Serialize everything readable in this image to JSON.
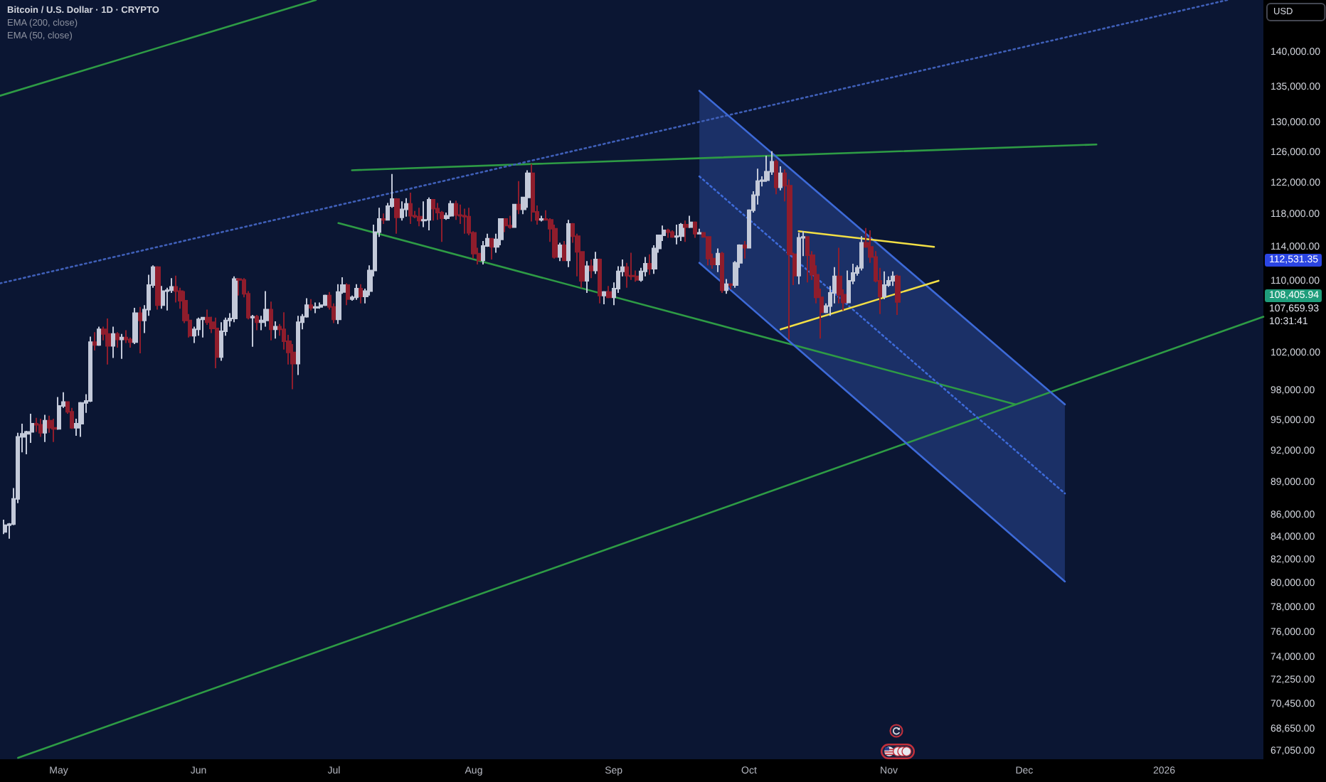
{
  "chart_data": {
    "type": "candlestick",
    "title": "Bitcoin / U.S. Dollar · 1D · CRYPTO",
    "ylabel": "USD",
    "log": true,
    "xlim": [
      "2025-04-18",
      "2026-01-23"
    ],
    "xticks": [
      {
        "value": "2025-05-01",
        "label": "May"
      },
      {
        "value": "2025-06-01",
        "label": "Jun"
      },
      {
        "value": "2025-07-01",
        "label": "Jul"
      },
      {
        "value": "2025-08-01",
        "label": "Aug"
      },
      {
        "value": "2025-09-01",
        "label": "Sep"
      },
      {
        "value": "2025-10-01",
        "label": "Oct"
      },
      {
        "value": "2025-11-01",
        "label": "Nov"
      },
      {
        "value": "2025-12-01",
        "label": "Dec"
      },
      {
        "value": "2026-01-01",
        "label": "2026"
      }
    ],
    "ylim": [
      66500,
      148000
    ],
    "yticks": [
      {
        "value": 140000,
        "label": "140,000.00"
      },
      {
        "value": 135000,
        "label": "135,000.00"
      },
      {
        "value": 130000,
        "label": "130,000.00"
      },
      {
        "value": 126000,
        "label": "126,000.00"
      },
      {
        "value": 122000,
        "label": "122,000.00"
      },
      {
        "value": 118000,
        "label": "118,000.00"
      },
      {
        "value": 114000,
        "label": "114,000.00"
      },
      {
        "value": 110000,
        "label": "110,000.00"
      },
      {
        "value": 102000,
        "label": "102,000.00"
      },
      {
        "value": 98000,
        "label": "98,000.00"
      },
      {
        "value": 95000,
        "label": "95,000.00"
      },
      {
        "value": 92000,
        "label": "92,000.00"
      },
      {
        "value": 89000,
        "label": "89,000.00"
      },
      {
        "value": 86000,
        "label": "86,000.00"
      },
      {
        "value": 84000,
        "label": "84,000.00"
      },
      {
        "value": 82000,
        "label": "82,000.00"
      },
      {
        "value": 80000,
        "label": "80,000.00"
      },
      {
        "value": 78000,
        "label": "78,000.00"
      },
      {
        "value": 76000,
        "label": "76,000.00"
      },
      {
        "value": 74000,
        "label": "74,000.00"
      },
      {
        "value": 72250,
        "label": "72,250.00"
      },
      {
        "value": 70450,
        "label": "70,450.00"
      },
      {
        "value": 68650,
        "label": "68,650.00"
      },
      {
        "value": 67050,
        "label": "67,050.00"
      }
    ],
    "annotations": [
      "EMA (200, close)",
      "EMA (50, close)",
      "112,531.35",
      "108,405.94",
      "107,659.93\n10:31:41"
    ],
    "series": [
      {
        "type": "candlestick",
        "x": [
          "2025-04-19",
          "2025-04-20",
          "2025-04-21",
          "2025-04-22",
          "2025-04-23",
          "2025-04-24",
          "2025-04-25",
          "2025-04-26",
          "2025-04-27",
          "2025-04-28",
          "2025-04-29",
          "2025-04-30",
          "2025-05-01",
          "2025-05-02",
          "2025-05-03",
          "2025-05-04",
          "2025-05-05",
          "2025-05-06",
          "2025-05-07",
          "2025-05-08",
          "2025-05-09",
          "2025-05-10",
          "2025-05-11",
          "2025-05-12",
          "2025-05-13",
          "2025-05-14",
          "2025-05-15",
          "2025-05-16",
          "2025-05-17",
          "2025-05-18",
          "2025-05-19",
          "2025-05-20",
          "2025-05-21",
          "2025-05-22",
          "2025-05-23",
          "2025-05-24",
          "2025-05-25",
          "2025-05-26",
          "2025-05-27",
          "2025-05-28",
          "2025-05-29",
          "2025-05-30",
          "2025-05-31",
          "2025-06-01",
          "2025-06-02",
          "2025-06-03",
          "2025-06-04",
          "2025-06-05",
          "2025-06-06",
          "2025-06-07",
          "2025-06-08",
          "2025-06-09",
          "2025-06-10",
          "2025-06-11",
          "2025-06-12",
          "2025-06-13",
          "2025-06-14",
          "2025-06-15",
          "2025-06-16",
          "2025-06-17",
          "2025-06-18",
          "2025-06-19",
          "2025-06-20",
          "2025-06-21",
          "2025-06-22",
          "2025-06-23",
          "2025-06-24",
          "2025-06-25",
          "2025-06-26",
          "2025-06-27",
          "2025-06-28",
          "2025-06-29",
          "2025-06-30",
          "2025-07-01",
          "2025-07-02",
          "2025-07-03",
          "2025-07-04",
          "2025-07-05",
          "2025-07-06",
          "2025-07-07",
          "2025-07-08",
          "2025-07-09",
          "2025-07-10",
          "2025-07-11",
          "2025-07-12",
          "2025-07-13",
          "2025-07-14",
          "2025-07-15",
          "2025-07-16",
          "2025-07-17",
          "2025-07-18",
          "2025-07-19",
          "2025-07-20",
          "2025-07-21",
          "2025-07-22",
          "2025-07-23",
          "2025-07-24",
          "2025-07-25",
          "2025-07-26",
          "2025-07-27",
          "2025-07-28",
          "2025-07-29",
          "2025-07-30",
          "2025-07-31",
          "2025-08-01",
          "2025-08-02",
          "2025-08-03",
          "2025-08-04",
          "2025-08-05",
          "2025-08-06",
          "2025-08-07",
          "2025-08-08",
          "2025-08-09",
          "2025-08-10",
          "2025-08-11",
          "2025-08-12",
          "2025-08-13",
          "2025-08-14",
          "2025-08-15",
          "2025-08-16",
          "2025-08-17",
          "2025-08-18",
          "2025-08-19",
          "2025-08-20",
          "2025-08-21",
          "2025-08-22",
          "2025-08-23",
          "2025-08-24",
          "2025-08-25",
          "2025-08-26",
          "2025-08-27",
          "2025-08-28",
          "2025-08-29",
          "2025-08-30",
          "2025-08-31",
          "2025-09-01",
          "2025-09-02",
          "2025-09-03",
          "2025-09-04",
          "2025-09-05",
          "2025-09-06",
          "2025-09-07",
          "2025-09-08",
          "2025-09-09",
          "2025-09-10",
          "2025-09-11",
          "2025-09-12",
          "2025-09-13",
          "2025-09-14",
          "2025-09-15",
          "2025-09-16",
          "2025-09-17",
          "2025-09-18",
          "2025-09-19",
          "2025-09-20",
          "2025-09-21",
          "2025-09-22",
          "2025-09-23",
          "2025-09-24",
          "2025-09-25",
          "2025-09-26",
          "2025-09-27",
          "2025-09-28",
          "2025-09-29",
          "2025-09-30",
          "2025-10-01",
          "2025-10-02",
          "2025-10-03",
          "2025-10-04",
          "2025-10-05",
          "2025-10-06",
          "2025-10-07",
          "2025-10-08",
          "2025-10-09",
          "2025-10-10",
          "2025-10-11",
          "2025-10-12",
          "2025-10-13",
          "2025-10-14",
          "2025-10-15",
          "2025-10-16",
          "2025-10-17",
          "2025-10-18",
          "2025-10-19",
          "2025-10-20",
          "2025-10-21",
          "2025-10-22",
          "2025-10-23",
          "2025-10-24",
          "2025-10-25",
          "2025-10-26",
          "2025-10-27",
          "2025-10-28",
          "2025-10-29",
          "2025-10-30",
          "2025-10-31",
          "2025-11-01",
          "2025-11-02",
          "2025-11-03"
        ],
        "ohlc": [
          [
            84500,
            85600,
            84300,
            85100
          ],
          [
            85100,
            85300,
            83900,
            85200
          ],
          [
            85200,
            88500,
            85100,
            87500
          ],
          [
            87500,
            93800,
            87100,
            93400
          ],
          [
            93400,
            94700,
            91900,
            93700
          ],
          [
            93700,
            94000,
            91700,
            93900
          ],
          [
            93900,
            95700,
            92800,
            94700
          ],
          [
            94700,
            95300,
            93900,
            94600
          ],
          [
            94600,
            95200,
            93400,
            93800
          ],
          [
            93800,
            95600,
            92900,
            95000
          ],
          [
            95000,
            95500,
            93800,
            94300
          ],
          [
            94300,
            95200,
            92900,
            94200
          ],
          [
            94200,
            97400,
            94100,
            96500
          ],
          [
            96500,
            97900,
            96300,
            96900
          ],
          [
            96900,
            96900,
            95700,
            95900
          ],
          [
            95900,
            96300,
            94200,
            94300
          ],
          [
            94300,
            95200,
            93500,
            94700
          ],
          [
            94700,
            96900,
            93400,
            96800
          ],
          [
            96800,
            97700,
            95800,
            97000
          ],
          [
            97000,
            103800,
            96900,
            103200
          ],
          [
            103200,
            104300,
            102300,
            102900
          ],
          [
            102900,
            104900,
            102800,
            104600
          ],
          [
            104600,
            104900,
            103400,
            104100
          ],
          [
            104100,
            105800,
            100800,
            102800
          ],
          [
            102800,
            104900,
            101500,
            104100
          ],
          [
            104100,
            104300,
            102600,
            103500
          ],
          [
            103500,
            104100,
            101400,
            103700
          ],
          [
            103700,
            104500,
            103100,
            103500
          ],
          [
            103500,
            103700,
            102600,
            103200
          ],
          [
            103200,
            107000,
            103000,
            106400
          ],
          [
            106400,
            107100,
            102000,
            105600
          ],
          [
            105600,
            107300,
            104200,
            106800
          ],
          [
            106800,
            110800,
            106100,
            109600
          ],
          [
            109600,
            111900,
            109300,
            111700
          ],
          [
            111700,
            111800,
            106800,
            107300
          ],
          [
            107300,
            109500,
            106900,
            108900
          ],
          [
            108900,
            109300,
            106700,
            109000
          ],
          [
            109000,
            110400,
            108700,
            109400
          ],
          [
            109400,
            110700,
            107600,
            108900
          ],
          [
            108900,
            109300,
            106900,
            107800
          ],
          [
            107800,
            108900,
            105300,
            105600
          ],
          [
            105600,
            106300,
            103700,
            103900
          ],
          [
            103900,
            104900,
            103100,
            104600
          ],
          [
            104600,
            105900,
            103900,
            105700
          ],
          [
            105700,
            105900,
            103700,
            105900
          ],
          [
            105900,
            106800,
            105100,
            105400
          ],
          [
            105400,
            106000,
            104200,
            104700
          ],
          [
            104700,
            105900,
            100400,
            101600
          ],
          [
            101600,
            105400,
            101200,
            104400
          ],
          [
            104400,
            105900,
            103900,
            105600
          ],
          [
            105600,
            106400,
            104900,
            105800
          ],
          [
            105800,
            110600,
            105400,
            110300
          ],
          [
            110300,
            110400,
            108400,
            110200
          ],
          [
            110200,
            110400,
            108200,
            108600
          ],
          [
            108600,
            108900,
            105700,
            105900
          ],
          [
            105900,
            106200,
            102700,
            106000
          ],
          [
            106000,
            106200,
            104500,
            105400
          ],
          [
            105400,
            106100,
            104500,
            105600
          ],
          [
            105600,
            108900,
            104900,
            106800
          ],
          [
            106800,
            107700,
            103400,
            104600
          ],
          [
            104600,
            105500,
            103600,
            104900
          ],
          [
            104900,
            105200,
            103900,
            104600
          ],
          [
            104600,
            106500,
            102400,
            103300
          ],
          [
            103300,
            104000,
            100800,
            102100
          ],
          [
            102100,
            103000,
            98200,
            100900
          ],
          [
            100900,
            106100,
            99700,
            105400
          ],
          [
            105400,
            106300,
            104600,
            106000
          ],
          [
            106000,
            108100,
            105900,
            107300
          ],
          [
            107300,
            108000,
            106700,
            107000
          ],
          [
            107000,
            107600,
            106400,
            107100
          ],
          [
            107100,
            107600,
            106900,
            107300
          ],
          [
            107300,
            108500,
            107200,
            108400
          ],
          [
            108400,
            108800,
            106800,
            107100
          ],
          [
            107100,
            107500,
            105300,
            105700
          ],
          [
            105700,
            109700,
            105200,
            108800
          ],
          [
            108800,
            110500,
            108600,
            109600
          ],
          [
            109600,
            109800,
            107300,
            108000
          ],
          [
            108000,
            108400,
            107800,
            108200
          ],
          [
            108200,
            109700,
            107900,
            109200
          ],
          [
            109200,
            109700,
            107500,
            108300
          ],
          [
            108300,
            109200,
            107500,
            108900
          ],
          [
            108900,
            111900,
            108400,
            111300
          ],
          [
            111300,
            116800,
            110600,
            115900
          ],
          [
            115900,
            118900,
            115300,
            117500
          ],
          [
            117500,
            118200,
            116900,
            117400
          ],
          [
            117400,
            119500,
            117300,
            119100
          ],
          [
            119100,
            123200,
            118900,
            120000
          ],
          [
            120000,
            120100,
            115700,
            117700
          ],
          [
            117700,
            119700,
            117300,
            118700
          ],
          [
            118700,
            120100,
            117800,
            119400
          ],
          [
            119400,
            120800,
            116900,
            117900
          ],
          [
            117900,
            118500,
            117600,
            117800
          ],
          [
            117800,
            118900,
            116600,
            117300
          ],
          [
            117300,
            119700,
            116500,
            117400
          ],
          [
            117400,
            120200,
            116100,
            119900
          ],
          [
            119900,
            120000,
            117300,
            118800
          ],
          [
            118800,
            119500,
            117400,
            118300
          ],
          [
            118300,
            118500,
            114700,
            117600
          ],
          [
            117600,
            118300,
            117400,
            117900
          ],
          [
            117900,
            119800,
            117800,
            119400
          ],
          [
            119400,
            119800,
            117400,
            118000
          ],
          [
            118000,
            119300,
            116900,
            117900
          ],
          [
            117900,
            118800,
            115700,
            117800
          ],
          [
            117800,
            118900,
            115500,
            115800
          ],
          [
            115800,
            116000,
            112700,
            113300
          ],
          [
            113300,
            114000,
            112000,
            112500
          ],
          [
            112500,
            114800,
            112000,
            114200
          ],
          [
            114200,
            115700,
            114100,
            115100
          ],
          [
            115100,
            115100,
            112600,
            114100
          ],
          [
            114100,
            115700,
            113400,
            115000
          ],
          [
            115000,
            117600,
            114300,
            117500
          ],
          [
            117500,
            117600,
            115900,
            116700
          ],
          [
            116700,
            117900,
            116300,
            116500
          ],
          [
            116500,
            119300,
            116500,
            119300
          ],
          [
            119300,
            122300,
            118100,
            118700
          ],
          [
            118700,
            120300,
            118100,
            120200
          ],
          [
            120200,
            123700,
            118900,
            123300
          ],
          [
            123300,
            124500,
            117200,
            118400
          ],
          [
            118400,
            119200,
            116800,
            117400
          ],
          [
            117400,
            117900,
            117200,
            117500
          ],
          [
            117500,
            118600,
            117300,
            117400
          ],
          [
            117400,
            117600,
            114700,
            116300
          ],
          [
            116300,
            116800,
            112700,
            112900
          ],
          [
            112900,
            114600,
            112400,
            114300
          ],
          [
            114300,
            114800,
            112400,
            112500
          ],
          [
            112500,
            117400,
            111700,
            116900
          ],
          [
            116900,
            117000,
            114600,
            115400
          ],
          [
            115400,
            115700,
            110600,
            113500
          ],
          [
            113500,
            113600,
            109300,
            110100
          ],
          [
            110100,
            112400,
            108700,
            111800
          ],
          [
            111800,
            112600,
            110400,
            111300
          ],
          [
            111300,
            113500,
            110900,
            112600
          ],
          [
            112600,
            112700,
            107500,
            108400
          ],
          [
            108400,
            108900,
            107400,
            108800
          ],
          [
            108800,
            109500,
            108100,
            108200
          ],
          [
            108200,
            109900,
            107300,
            109200
          ],
          [
            109200,
            111800,
            108700,
            111200
          ],
          [
            111200,
            112600,
            110600,
            111700
          ],
          [
            111700,
            112200,
            109300,
            110700
          ],
          [
            110700,
            113400,
            110200,
            110600
          ],
          [
            110600,
            111300,
            110000,
            110200
          ],
          [
            110200,
            111600,
            110000,
            111200
          ],
          [
            111200,
            112900,
            110600,
            112100
          ],
          [
            112100,
            113200,
            110800,
            111500
          ],
          [
            111500,
            114300,
            110900,
            113900
          ],
          [
            113900,
            115500,
            113400,
            115500
          ],
          [
            115500,
            116700,
            114800,
            116100
          ],
          [
            116100,
            116300,
            115200,
            115900
          ],
          [
            115900,
            116100,
            115200,
            115300
          ],
          [
            115300,
            116800,
            114400,
            115400
          ],
          [
            115400,
            117000,
            114800,
            116800
          ],
          [
            116800,
            117300,
            114700,
            116500
          ],
          [
            116500,
            117900,
            116400,
            117100
          ],
          [
            117100,
            117200,
            115200,
            115700
          ],
          [
            115700,
            116300,
            115600,
            115800
          ],
          [
            115800,
            115900,
            115300,
            115300
          ],
          [
            115300,
            115400,
            111900,
            112700
          ],
          [
            112700,
            113300,
            111500,
            112000
          ],
          [
            112000,
            113900,
            111100,
            113300
          ],
          [
            113300,
            113500,
            108700,
            109000
          ],
          [
            109000,
            110300,
            108600,
            109700
          ],
          [
            109700,
            109800,
            109100,
            109600
          ],
          [
            109600,
            112400,
            109300,
            112200
          ],
          [
            112200,
            114400,
            111600,
            114300
          ],
          [
            114300,
            114800,
            112700,
            114000
          ],
          [
            114000,
            118700,
            113900,
            118600
          ],
          [
            118600,
            121000,
            118300,
            120500
          ],
          [
            120500,
            123900,
            119300,
            122300
          ],
          [
            122300,
            122900,
            121600,
            122400
          ],
          [
            122400,
            125600,
            122200,
            123500
          ],
          [
            123500,
            126200,
            123100,
            124800
          ],
          [
            124800,
            125100,
            120600,
            121500
          ],
          [
            121500,
            124200,
            121100,
            123300
          ],
          [
            123300,
            123800,
            119700,
            121700
          ],
          [
            121700,
            122500,
            103500,
            113200
          ],
          [
            113200,
            113400,
            109600,
            110700
          ],
          [
            110700,
            115800,
            109700,
            115200
          ],
          [
            115200,
            116000,
            113000,
            115300
          ],
          [
            115300,
            115400,
            109900,
            113100
          ],
          [
            113100,
            113600,
            110200,
            110800
          ],
          [
            110800,
            111900,
            107500,
            108200
          ],
          [
            108200,
            109200,
            103600,
            106500
          ],
          [
            106500,
            107500,
            106400,
            107200
          ],
          [
            107200,
            109500,
            106100,
            108700
          ],
          [
            108700,
            111700,
            107500,
            110600
          ],
          [
            110600,
            114000,
            107500,
            108500
          ],
          [
            108500,
            109100,
            106700,
            107600
          ],
          [
            107600,
            111300,
            107500,
            110100
          ],
          [
            110100,
            112100,
            109700,
            111000
          ],
          [
            111000,
            111900,
            110700,
            111600
          ],
          [
            111600,
            115400,
            111300,
            114600
          ],
          [
            114600,
            116400,
            114000,
            114100
          ],
          [
            114100,
            116100,
            112200,
            112900
          ],
          [
            112900,
            113600,
            109900,
            110100
          ],
          [
            110100,
            111600,
            106300,
            108300
          ],
          [
            108300,
            111200,
            108000,
            109600
          ],
          [
            109600,
            110600,
            109400,
            110100
          ],
          [
            110100,
            111200,
            109500,
            110600
          ],
          [
            110600,
            110800,
            106200,
            107659.93
          ]
        ],
        "colors": [
          "#c3c9d9",
          "#c3c9d9",
          "#c3c9d9",
          "#c3c9d9",
          "#c3c9d9",
          "#c3c9d9",
          "#c3c9d9",
          "#8f1d2c",
          "#8f1d2c",
          "#c3c9d9",
          "#8f1d2c",
          "#8f1d2c",
          "#c3c9d9",
          "#c3c9d9",
          "#8f1d2c",
          "#8f1d2c",
          "#c3c9d9",
          "#c3c9d9",
          "#c3c9d9",
          "#c3c9d9",
          "#8f1d2c",
          "#c3c9d9",
          "#8f1d2c",
          "#8f1d2c",
          "#c3c9d9",
          "#8f1d2c",
          "#c3c9d9",
          "#8f1d2c",
          "#8f1d2c",
          "#c3c9d9",
          "#8f1d2c",
          "#c3c9d9",
          "#c3c9d9",
          "#c3c9d9",
          "#8f1d2c",
          "#c3c9d9",
          "#c3c9d9",
          "#c3c9d9",
          "#8f1d2c",
          "#8f1d2c",
          "#8f1d2c",
          "#8f1d2c",
          "#c3c9d9",
          "#c3c9d9",
          "#c3c9d9",
          "#8f1d2c",
          "#8f1d2c",
          "#8f1d2c",
          "#c3c9d9",
          "#c3c9d9",
          "#c3c9d9",
          "#c3c9d9",
          "#8f1d2c",
          "#8f1d2c",
          "#8f1d2c",
          "#c3c9d9",
          "#8f1d2c",
          "#c3c9d9",
          "#c3c9d9",
          "#8f1d2c",
          "#c3c9d9",
          "#8f1d2c",
          "#8f1d2c",
          "#8f1d2c",
          "#8f1d2c",
          "#c3c9d9",
          "#c3c9d9",
          "#c3c9d9",
          "#8f1d2c",
          "#c3c9d9",
          "#c3c9d9",
          "#c3c9d9",
          "#8f1d2c",
          "#8f1d2c",
          "#c3c9d9",
          "#c3c9d9",
          "#8f1d2c",
          "#c3c9d9",
          "#c3c9d9",
          "#8f1d2c",
          "#c3c9d9",
          "#c3c9d9",
          "#c3c9d9",
          "#c3c9d9",
          "#8f1d2c",
          "#c3c9d9",
          "#c3c9d9",
          "#8f1d2c",
          "#c3c9d9",
          "#c3c9d9",
          "#8f1d2c",
          "#8f1d2c",
          "#8f1d2c",
          "#c3c9d9",
          "#c3c9d9",
          "#8f1d2c",
          "#8f1d2c",
          "#8f1d2c",
          "#c3c9d9",
          "#c3c9d9",
          "#8f1d2c",
          "#8f1d2c",
          "#8f1d2c",
          "#8f1d2c",
          "#8f1d2c",
          "#8f1d2c",
          "#c3c9d9",
          "#c3c9d9",
          "#8f1d2c",
          "#c3c9d9",
          "#c3c9d9",
          "#8f1d2c",
          "#8f1d2c",
          "#c3c9d9",
          "#8f1d2c",
          "#c3c9d9",
          "#c3c9d9",
          "#8f1d2c",
          "#8f1d2c",
          "#c3c9d9",
          "#8f1d2c",
          "#8f1d2c",
          "#8f1d2c",
          "#c3c9d9",
          "#8f1d2c",
          "#c3c9d9",
          "#8f1d2c",
          "#8f1d2c",
          "#8f1d2c",
          "#c3c9d9",
          "#8f1d2c",
          "#c3c9d9",
          "#8f1d2c",
          "#c3c9d9",
          "#8f1d2c",
          "#c3c9d9",
          "#c3c9d9",
          "#c3c9d9",
          "#8f1d2c",
          "#8f1d2c",
          "#8f1d2c",
          "#c3c9d9",
          "#c3c9d9",
          "#8f1d2c",
          "#c3c9d9",
          "#c3c9d9",
          "#c3c9d9",
          "#8f1d2c",
          "#8f1d2c",
          "#c3c9d9",
          "#c3c9d9",
          "#8f1d2c",
          "#c3c9d9",
          "#8f1d2c",
          "#c3c9d9",
          "#8f1d2c",
          "#8f1d2c",
          "#8f1d2c",
          "#c3c9d9",
          "#8f1d2c",
          "#c3c9d9",
          "#8f1d2c",
          "#c3c9d9",
          "#c3c9d9",
          "#8f1d2c",
          "#c3c9d9",
          "#c3c9d9",
          "#c3c9d9",
          "#c3c9d9",
          "#c3c9d9",
          "#c3c9d9",
          "#8f1d2c",
          "#c3c9d9",
          "#8f1d2c",
          "#8f1d2c",
          "#8f1d2c",
          "#c3c9d9",
          "#c3c9d9",
          "#8f1d2c",
          "#8f1d2c",
          "#8f1d2c",
          "#8f1d2c",
          "#c3c9d9",
          "#c3c9d9",
          "#c3c9d9",
          "#8f1d2c",
          "#8f1d2c",
          "#c3c9d9",
          "#c3c9d9",
          "#c3c9d9",
          "#c3c9d9",
          "#8f1d2c",
          "#8f1d2c",
          "#8f1d2c",
          "#8f1d2c",
          "#c3c9d9",
          "#c3c9d9",
          "#c3c9d9",
          "#8f1d2c"
        ]
      },
      {
        "type": "line",
        "x": [
          "2025-04-18",
          "2025-06-27"
        ],
        "values": [
          133800,
          148000
        ],
        "color": "#2e9b45"
      },
      {
        "type": "line",
        "x": [
          "2025-07-05",
          "2025-12-17"
        ],
        "values": [
          123700,
          127100
        ],
        "color": "#2e9b45"
      },
      {
        "type": "line",
        "x": [
          "2025-07-02",
          "2025-11-29"
        ],
        "values": [
          117000,
          96650
        ],
        "color": "#2e9b45"
      },
      {
        "type": "line",
        "x": [
          "2025-04-22",
          "2026-01-23"
        ],
        "values": [
          66600,
          106000
        ],
        "color": "#2e9b45"
      },
      {
        "type": "line",
        "x": [
          "2025-04-18",
          "2026-01-15"
        ],
        "values": [
          109800,
          148000
        ],
        "color": "#3f5fb8",
        "line_style": "dotted"
      },
      {
        "type": "line",
        "x": [
          "2025-09-20",
          "2025-12-10"
        ],
        "values": [
          134500,
          96650
        ],
        "color": "#3d6ad8"
      },
      {
        "type": "line",
        "x": [
          "2025-09-20",
          "2025-12-10"
        ],
        "values": [
          112200,
          80200
        ],
        "color": "#3d6ad8"
      },
      {
        "type": "line",
        "x": [
          "2025-09-20",
          "2025-12-10"
        ],
        "values": [
          122900,
          88000
        ],
        "lower": [
          112200,
          80200
        ],
        "upper": [
          134500,
          96650
        ],
        "color": "#3d6ad8",
        "line_style": "dotted"
      },
      {
        "type": "line",
        "x": [
          "2025-10-12",
          "2025-11-11"
        ],
        "values": [
          116000,
          114100
        ],
        "color": "#f2df45"
      },
      {
        "type": "line",
        "x": [
          "2025-10-08",
          "2025-11-12"
        ],
        "values": [
          104600,
          110100
        ],
        "color": "#f2df45"
      }
    ]
  }
}
